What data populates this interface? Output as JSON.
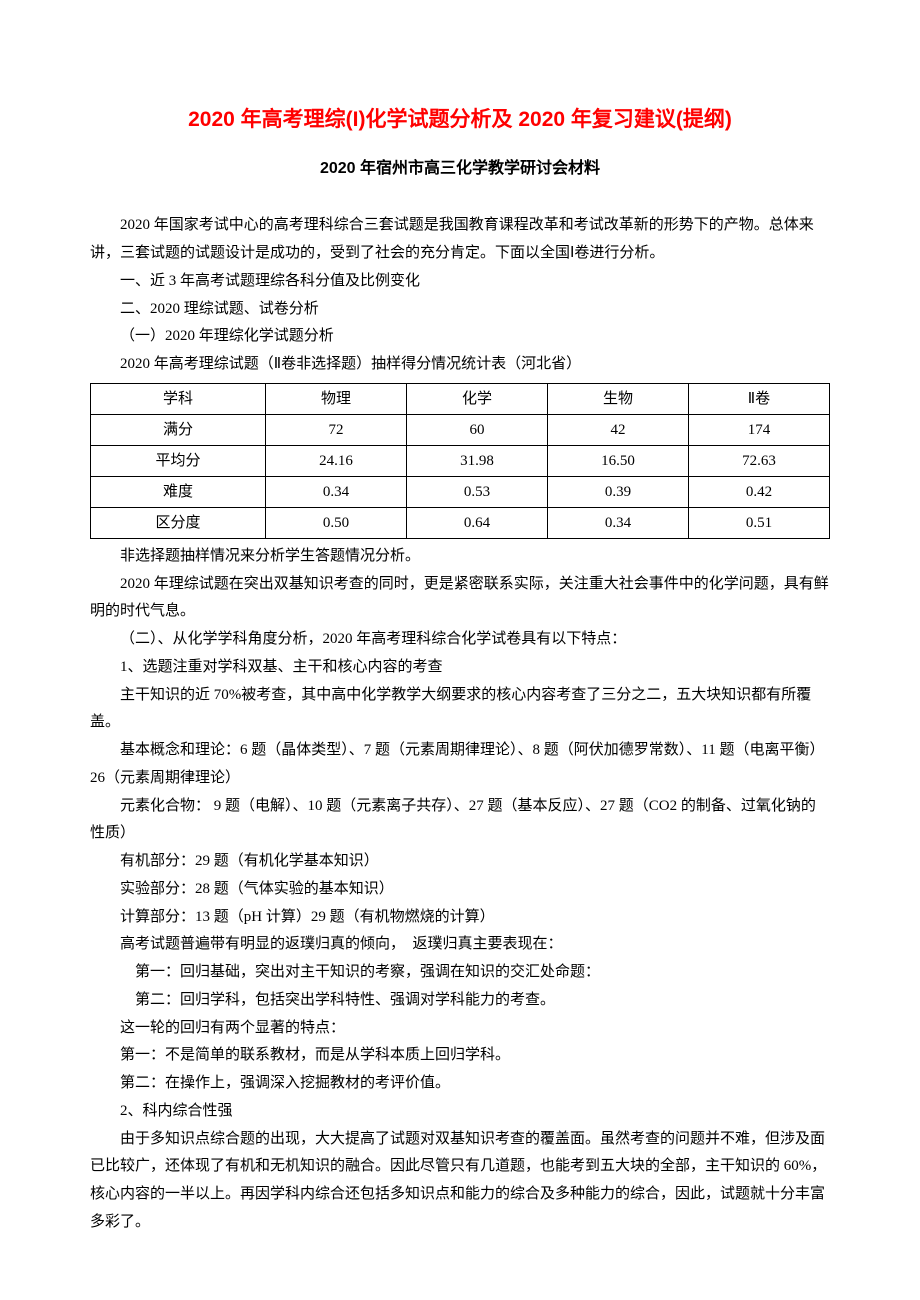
{
  "title": "2020 年高考理综(I)化学试题分析及 2020 年复习建议(提纲)",
  "subtitle": "2020 年宿州市高三化学教学研讨会材料",
  "intro": "2020 年国家考试中心的高考理科综合三套试题是我国教育课程改革和考试改革新的形势下的产物。总体来讲，三套试题的试题设计是成功的，受到了社会的充分肯定。下面以全国Ⅰ卷进行分析。",
  "outline": {
    "i1": "一、近 3 年高考试题理综各科分值及比例变化",
    "i2": "二、2020 理综试题、试卷分析",
    "i2_1": "（一）2020 年理综化学试题分析",
    "table_caption": "2020 年高考理综试题（Ⅱ卷非选择题）抽样得分情况统计表（河北省）"
  },
  "table": {
    "headers": [
      "学科",
      "物理",
      "化学",
      "生物",
      "Ⅱ卷"
    ],
    "rows": [
      [
        "满分",
        "72",
        "60",
        "42",
        "174"
      ],
      [
        "平均分",
        "24.16",
        "31.98",
        "16.50",
        "72.63"
      ],
      [
        "难度",
        "0.34",
        "0.53",
        "0.39",
        "0.42"
      ],
      [
        "区分度",
        "0.50",
        "0.64",
        "0.34",
        "0.51"
      ]
    ],
    "border_color": "#000000"
  },
  "after_table": {
    "p1": "非选择题抽样情况来分析学生答题情况分析。",
    "p2": "2020 年理综试题在突出双基知识考查的同时，更是紧密联系实际，关注重大社会事件中的化学问题，具有鲜明的时代气息。",
    "sec2": "（二）、从化学学科角度分析，2020 年高考理科综合化学试卷具有以下特点：",
    "s1": "1、选题注重对学科双基、主干和核心内容的考查",
    "s1p1": "主干知识的近 70%被考查，其中高中化学教学大纲要求的核心内容考查了三分之二，五大块知识都有所覆盖。",
    "s1p2": "基本概念和理论：6 题（晶体类型）、7 题（元素周期律理论）、8 题（阿伏加德罗常数）、11 题（电离平衡）26（元素周期律理论）",
    "s1p3": "元素化合物： 9 题（电解）、10 题（元素离子共存）、27 题（基本反应）、27 题（CO2 的制备、过氧化钠的性质）",
    "s1p4": "有机部分：29 题（有机化学基本知识）",
    "s1p5": "实验部分：28 题（气体实验的基本知识）",
    "s1p6": "计算部分：13 题（pH 计算）29 题（有机物燃烧的计算）",
    "s1p7": "高考试题普遍带有明显的返璞归真的倾向，　返璞归真主要表现在：",
    "s1p8": "第一：回归基础，突出对主干知识的考察，强调在知识的交汇处命题：",
    "s1p9": "第二：回归学科，包括突出学科特性、强调对学科能力的考查。",
    "s1p10": "这一轮的回归有两个显著的特点：",
    "s1p11": "第一：不是简单的联系教材，而是从学科本质上回归学科。",
    "s1p12": "第二：在操作上，强调深入挖掘教材的考评价值。",
    "s2": "2、科内综合性强",
    "s2p1": "由于多知识点综合题的出现，大大提高了试题对双基知识考查的覆盖面。虽然考查的问题并不难，但涉及面已比较广，还体现了有机和无机知识的融合。因此尽管只有几道题，也能考到五大块的全部，主干知识的 60%，核心内容的一半以上。再因学科内综合还包括多知识点和能力的综合及多种能力的综合，因此，试题就十分丰富多彩了。"
  }
}
